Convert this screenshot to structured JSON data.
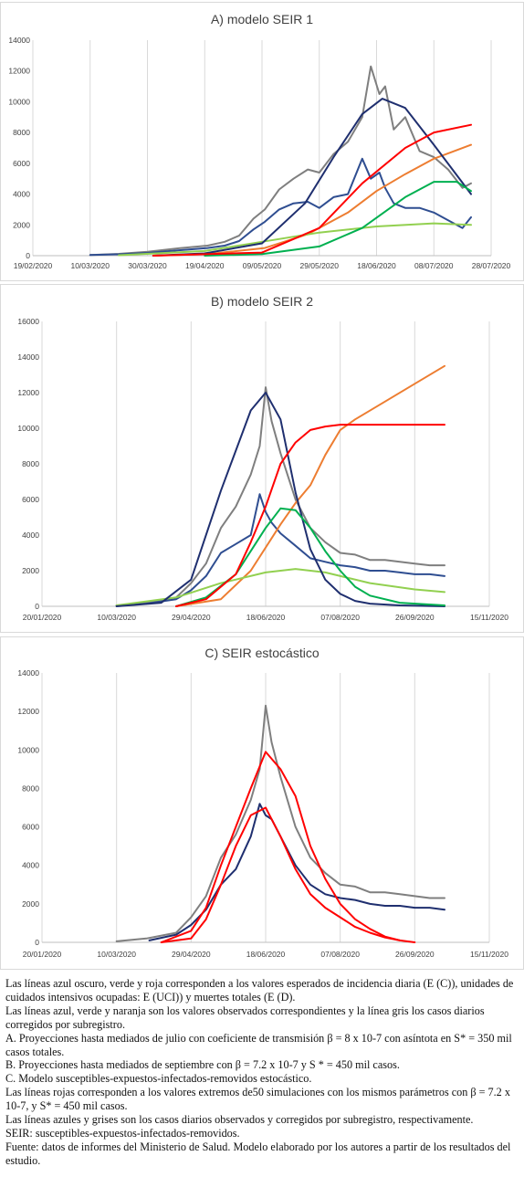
{
  "chart_data": [
    {
      "type": "line",
      "title": "A) modelo SEIR 1",
      "ylim": [
        0,
        14000
      ],
      "y_ticks": [
        "0",
        "2000",
        "4000",
        "6000",
        "8000",
        "10000",
        "12000",
        "14000"
      ],
      "xlim": [
        "2020-02-19",
        "2020-07-28"
      ],
      "x_ticks": [
        {
          "date": "2020-02-19",
          "label": "19/02/2020"
        },
        {
          "date": "2020-03-10",
          "label": "10/03/2020"
        },
        {
          "date": "2020-03-30",
          "label": "30/03/2020"
        },
        {
          "date": "2020-04-19",
          "label": "19/04/2020"
        },
        {
          "date": "2020-05-09",
          "label": "09/05/2020"
        },
        {
          "date": "2020-05-29",
          "label": "29/05/2020"
        },
        {
          "date": "2020-06-18",
          "label": "18/06/2020"
        },
        {
          "date": "2020-07-08",
          "label": "08/07/2020"
        },
        {
          "date": "2020-07-28",
          "label": "28/07/2020"
        }
      ],
      "grid": "vertical",
      "series": [
        {
          "color": "#7f7f7f",
          "x": [
            "2020-03-10",
            "2020-03-20",
            "2020-03-30",
            "2020-04-10",
            "2020-04-20",
            "2020-04-26",
            "2020-05-01",
            "2020-05-06",
            "2020-05-10",
            "2020-05-15",
            "2020-05-20",
            "2020-05-25",
            "2020-05-29",
            "2020-06-03",
            "2020-06-08",
            "2020-06-13",
            "2020-06-16",
            "2020-06-19",
            "2020-06-21",
            "2020-06-24",
            "2020-06-28",
            "2020-07-03",
            "2020-07-08",
            "2020-07-13",
            "2020-07-18",
            "2020-07-21"
          ],
          "y": [
            50,
            120,
            250,
            480,
            650,
            900,
            1300,
            2400,
            3000,
            4300,
            5000,
            5600,
            5400,
            6600,
            7400,
            9000,
            12300,
            10500,
            11000,
            8200,
            9000,
            6800,
            6400,
            5600,
            4400,
            4700
          ]
        },
        {
          "color": "#2f4e91",
          "x": [
            "2020-03-10",
            "2020-03-20",
            "2020-03-30",
            "2020-04-10",
            "2020-04-20",
            "2020-04-26",
            "2020-05-01",
            "2020-05-06",
            "2020-05-10",
            "2020-05-15",
            "2020-05-20",
            "2020-05-25",
            "2020-05-29",
            "2020-06-03",
            "2020-06-08",
            "2020-06-13",
            "2020-06-16",
            "2020-06-19",
            "2020-06-21",
            "2020-06-24",
            "2020-06-28",
            "2020-07-03",
            "2020-07-08",
            "2020-07-13",
            "2020-07-18",
            "2020-07-21"
          ],
          "y": [
            40,
            90,
            180,
            350,
            500,
            650,
            950,
            1700,
            2200,
            3000,
            3400,
            3500,
            3100,
            3800,
            4000,
            6300,
            5000,
            5400,
            4400,
            3400,
            3100,
            3100,
            2800,
            2300,
            1800,
            2500
          ]
        },
        {
          "color": "#ed7d31",
          "x": [
            "2020-04-01",
            "2020-04-20",
            "2020-05-10",
            "2020-05-25",
            "2020-06-08",
            "2020-06-18",
            "2020-06-28",
            "2020-07-08",
            "2020-07-21"
          ],
          "y": [
            0,
            100,
            500,
            1400,
            2800,
            4200,
            5300,
            6300,
            7200
          ]
        },
        {
          "color": "#92d050",
          "x": [
            "2020-03-20",
            "2020-04-19",
            "2020-05-09",
            "2020-05-29",
            "2020-06-18",
            "2020-07-08",
            "2020-07-21"
          ],
          "y": [
            30,
            300,
            900,
            1500,
            1900,
            2100,
            2000
          ]
        },
        {
          "color": "#1f2f6f",
          "x": [
            "2020-04-01",
            "2020-04-19",
            "2020-05-09",
            "2020-05-24",
            "2020-06-03",
            "2020-06-13",
            "2020-06-20",
            "2020-06-28",
            "2020-07-08",
            "2020-07-21"
          ],
          "y": [
            0,
            150,
            800,
            3400,
            6400,
            9200,
            10200,
            9600,
            7200,
            4000
          ]
        },
        {
          "color": "#00b050",
          "x": [
            "2020-04-19",
            "2020-05-09",
            "2020-05-29",
            "2020-06-13",
            "2020-06-28",
            "2020-07-08",
            "2020-07-16",
            "2020-07-21"
          ],
          "y": [
            0,
            100,
            600,
            1800,
            3800,
            4800,
            4800,
            4200
          ]
        },
        {
          "color": "#ff0000",
          "x": [
            "2020-04-01",
            "2020-05-09",
            "2020-05-29",
            "2020-06-13",
            "2020-06-28",
            "2020-07-08",
            "2020-07-21"
          ],
          "y": [
            0,
            200,
            1800,
            4700,
            7000,
            8000,
            8500
          ]
        }
      ]
    },
    {
      "type": "line",
      "title": "B) modelo SEIR 2",
      "ylim": [
        0,
        16000
      ],
      "y_ticks": [
        "0",
        "2000",
        "4000",
        "6000",
        "8000",
        "10000",
        "12000",
        "14000",
        "16000"
      ],
      "xlim": [
        "2020-01-20",
        "2020-11-15"
      ],
      "x_ticks": [
        {
          "date": "2020-01-20",
          "label": "20/01/2020"
        },
        {
          "date": "2020-03-10",
          "label": "10/03/2020"
        },
        {
          "date": "2020-04-29",
          "label": "29/04/2020"
        },
        {
          "date": "2020-06-18",
          "label": "18/06/2020"
        },
        {
          "date": "2020-08-07",
          "label": "07/08/2020"
        },
        {
          "date": "2020-09-26",
          "label": "26/09/2020"
        },
        {
          "date": "2020-11-15",
          "label": "15/11/2020"
        }
      ],
      "grid": "vertical",
      "series": [
        {
          "color": "#7f7f7f",
          "x": [
            "2020-03-10",
            "2020-03-30",
            "2020-04-19",
            "2020-04-29",
            "2020-05-09",
            "2020-05-19",
            "2020-05-29",
            "2020-06-08",
            "2020-06-14",
            "2020-06-18",
            "2020-06-22",
            "2020-06-28",
            "2020-07-08",
            "2020-07-18",
            "2020-07-28",
            "2020-08-07",
            "2020-08-17",
            "2020-08-27",
            "2020-09-06",
            "2020-09-16",
            "2020-09-26",
            "2020-10-06",
            "2020-10-16"
          ],
          "y": [
            50,
            200,
            500,
            1300,
            2400,
            4400,
            5600,
            7400,
            9000,
            12300,
            10400,
            8600,
            6000,
            4400,
            3600,
            3000,
            2900,
            2600,
            2600,
            2500,
            2400,
            2300,
            2300
          ]
        },
        {
          "color": "#2f4e91",
          "x": [
            "2020-03-10",
            "2020-03-30",
            "2020-04-19",
            "2020-04-29",
            "2020-05-09",
            "2020-05-19",
            "2020-05-29",
            "2020-06-08",
            "2020-06-14",
            "2020-06-18",
            "2020-06-22",
            "2020-06-28",
            "2020-07-08",
            "2020-07-18",
            "2020-07-28",
            "2020-08-07",
            "2020-08-17",
            "2020-08-27",
            "2020-09-06",
            "2020-09-16",
            "2020-09-26",
            "2020-10-06",
            "2020-10-16"
          ],
          "y": [
            40,
            150,
            400,
            900,
            1700,
            3000,
            3500,
            4000,
            6300,
            5300,
            4700,
            4100,
            3400,
            2700,
            2500,
            2300,
            2200,
            2000,
            2000,
            1900,
            1800,
            1800,
            1700
          ]
        },
        {
          "color": "#ed7d31",
          "x": [
            "2020-04-19",
            "2020-05-19",
            "2020-06-08",
            "2020-06-28",
            "2020-07-08",
            "2020-07-18",
            "2020-07-28",
            "2020-08-07",
            "2020-08-17",
            "2020-09-06",
            "2020-09-26",
            "2020-10-16"
          ],
          "y": [
            0,
            400,
            2000,
            4600,
            5800,
            6800,
            8500,
            9900,
            10500,
            11500,
            12500,
            13500
          ]
        },
        {
          "color": "#92d050",
          "x": [
            "2020-03-10",
            "2020-04-19",
            "2020-05-19",
            "2020-06-18",
            "2020-07-08",
            "2020-07-28",
            "2020-08-27",
            "2020-09-26",
            "2020-10-16"
          ],
          "y": [
            50,
            500,
            1300,
            1900,
            2100,
            1900,
            1300,
            950,
            800
          ]
        },
        {
          "color": "#1f2f6f",
          "x": [
            "2020-03-10",
            "2020-04-09",
            "2020-04-29",
            "2020-05-19",
            "2020-06-08",
            "2020-06-18",
            "2020-06-28",
            "2020-07-08",
            "2020-07-18",
            "2020-07-28",
            "2020-08-07",
            "2020-08-17",
            "2020-08-27",
            "2020-09-16",
            "2020-10-16"
          ],
          "y": [
            0,
            200,
            1500,
            6500,
            11000,
            12000,
            10500,
            6400,
            3200,
            1500,
            700,
            300,
            150,
            50,
            0
          ]
        },
        {
          "color": "#00b050",
          "x": [
            "2020-04-19",
            "2020-05-09",
            "2020-05-29",
            "2020-06-18",
            "2020-06-28",
            "2020-07-08",
            "2020-07-18",
            "2020-07-28",
            "2020-08-07",
            "2020-08-17",
            "2020-08-27",
            "2020-09-16",
            "2020-10-16"
          ],
          "y": [
            0,
            500,
            1800,
            4400,
            5500,
            5400,
            4400,
            3100,
            2000,
            1100,
            600,
            200,
            50
          ]
        },
        {
          "color": "#ff0000",
          "x": [
            "2020-04-19",
            "2020-05-09",
            "2020-05-29",
            "2020-06-08",
            "2020-06-18",
            "2020-06-28",
            "2020-07-08",
            "2020-07-18",
            "2020-07-28",
            "2020-08-07",
            "2020-08-27",
            "2020-09-26",
            "2020-10-16"
          ],
          "y": [
            0,
            400,
            1800,
            3600,
            5600,
            8000,
            9200,
            9900,
            10100,
            10200,
            10200,
            10200,
            10200
          ]
        }
      ]
    },
    {
      "type": "line",
      "title": "C) SEIR estocástico",
      "ylim": [
        0,
        14000
      ],
      "y_ticks": [
        "0",
        "2000",
        "4000",
        "6000",
        "8000",
        "10000",
        "12000",
        "14000"
      ],
      "xlim": [
        "2020-01-20",
        "2020-11-15"
      ],
      "x_ticks": [
        {
          "date": "2020-01-20",
          "label": "20/01/2020"
        },
        {
          "date": "2020-03-10",
          "label": "10/03/2020"
        },
        {
          "date": "2020-04-29",
          "label": "29/04/2020"
        },
        {
          "date": "2020-06-18",
          "label": "18/06/2020"
        },
        {
          "date": "2020-08-07",
          "label": "07/08/2020"
        },
        {
          "date": "2020-09-26",
          "label": "26/09/2020"
        },
        {
          "date": "2020-11-15",
          "label": "15/11/2020"
        }
      ],
      "grid": "vertical",
      "series": [
        {
          "color": "#7f7f7f",
          "x": [
            "2020-03-10",
            "2020-03-30",
            "2020-04-19",
            "2020-04-29",
            "2020-05-09",
            "2020-05-19",
            "2020-05-29",
            "2020-06-08",
            "2020-06-14",
            "2020-06-18",
            "2020-06-22",
            "2020-06-28",
            "2020-07-08",
            "2020-07-18",
            "2020-07-28",
            "2020-08-07",
            "2020-08-17",
            "2020-08-27",
            "2020-09-06",
            "2020-09-16",
            "2020-09-26",
            "2020-10-06",
            "2020-10-16"
          ],
          "y": [
            50,
            200,
            500,
            1300,
            2400,
            4400,
            5600,
            7400,
            9000,
            12300,
            10400,
            8600,
            6000,
            4400,
            3600,
            3000,
            2900,
            2600,
            2600,
            2500,
            2400,
            2300,
            2300
          ]
        },
        {
          "color": "#1f2f6f",
          "x": [
            "2020-04-01",
            "2020-04-19",
            "2020-04-29",
            "2020-05-09",
            "2020-05-19",
            "2020-05-29",
            "2020-06-08",
            "2020-06-14",
            "2020-06-18",
            "2020-06-22",
            "2020-06-28",
            "2020-07-08",
            "2020-07-18",
            "2020-07-28",
            "2020-08-07",
            "2020-08-17",
            "2020-08-27",
            "2020-09-06",
            "2020-09-16",
            "2020-09-26",
            "2020-10-06",
            "2020-10-16"
          ],
          "y": [
            100,
            400,
            900,
            1700,
            3000,
            3800,
            5500,
            7200,
            6600,
            6400,
            5500,
            4000,
            3000,
            2500,
            2300,
            2200,
            2000,
            1900,
            1900,
            1800,
            1800,
            1700
          ]
        },
        {
          "color": "#ff0000",
          "x": [
            "2020-04-09",
            "2020-04-29",
            "2020-05-09",
            "2020-05-19",
            "2020-05-29",
            "2020-06-08",
            "2020-06-18",
            "2020-06-28",
            "2020-07-08",
            "2020-07-18",
            "2020-07-28",
            "2020-08-07",
            "2020-08-17",
            "2020-08-27",
            "2020-09-06",
            "2020-09-16"
          ],
          "y": [
            0,
            600,
            1800,
            4000,
            6000,
            8000,
            9900,
            9000,
            7600,
            5000,
            3300,
            2000,
            1200,
            700,
            300,
            100
          ]
        },
        {
          "color": "#ff0000",
          "x": [
            "2020-04-09",
            "2020-04-29",
            "2020-05-09",
            "2020-05-19",
            "2020-05-29",
            "2020-06-08",
            "2020-06-18",
            "2020-06-28",
            "2020-07-08",
            "2020-07-18",
            "2020-07-28",
            "2020-08-07",
            "2020-08-17",
            "2020-08-27",
            "2020-09-06",
            "2020-09-16",
            "2020-09-26"
          ],
          "y": [
            0,
            200,
            1200,
            3000,
            5000,
            6600,
            7000,
            5500,
            3800,
            2500,
            1800,
            1300,
            800,
            500,
            250,
            100,
            0
          ]
        }
      ]
    }
  ],
  "caption": [
    "Las líneas azul oscuro, verde y roja corresponden a los valores esperados de incidencia diaria (E (C)), unidades de cuidados intensivos ocupadas: E (UCI)) y muertes totales (E (D).",
    "Las líneas azul, verde y naranja son los valores observados correspondientes y la línea gris los casos diarios corregidos por subregistro.",
    "A. Proyecciones hasta mediados de julio con coeficiente de transmisión β = 8 x 10-7 con asíntota en S* = 350 mil casos totales.",
    "B. Proyecciones hasta mediados de septiembre con β = 7.2 x 10-7 y S * = 450 mil casos.",
    "C. Modelo susceptibles-expuestos-infectados-removidos estocástico.",
    "Las líneas rojas corresponden a los valores extremos de50 simulaciones con los mismos parámetros con β = 7.2 x 10-7, y S* = 450 mil casos.",
    "Las líneas azules y grises son los casos diarios observados y corregidos por subregistro, respectivamente.",
    "SEIR: susceptibles-expuestos-infectados-removidos.",
    "Fuente: datos de informes del Ministerio de Salud. Modelo elaborado por los autores a partir de los resultados del estudio."
  ]
}
